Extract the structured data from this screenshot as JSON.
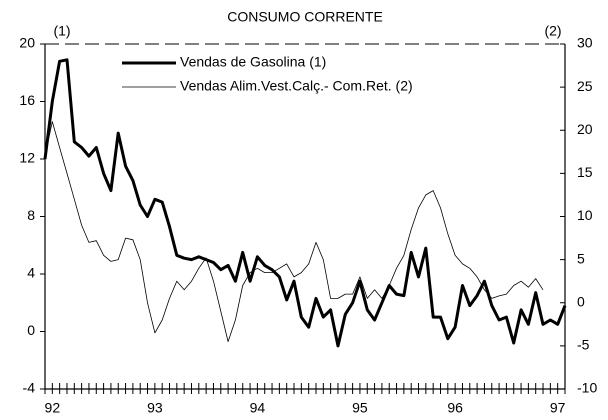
{
  "chart_data": {
    "type": "line",
    "title": "CONSUMO CORRENTE",
    "y_axis_label": "(1)",
    "y2_axis_label": "(2)",
    "categories": [
      null,
      "92",
      null,
      null,
      null,
      null,
      null,
      null,
      null,
      null,
      null,
      null,
      null,
      null,
      null,
      "93",
      null,
      null,
      null,
      null,
      null,
      null,
      null,
      null,
      null,
      null,
      null,
      null,
      null,
      "94",
      null,
      null,
      null,
      null,
      null,
      null,
      null,
      null,
      null,
      null,
      null,
      null,
      null,
      "95",
      null,
      null,
      null,
      null,
      null,
      null,
      null,
      null,
      null,
      null,
      null,
      null,
      "96",
      null,
      null,
      null,
      null,
      null,
      null,
      null,
      null,
      null,
      null,
      null,
      null,
      null,
      "97",
      null
    ],
    "series": [
      {
        "name": "Vendas de Gasolina (1)",
        "color": "#000000",
        "line_width": 3,
        "axis": "y",
        "values": [
          12,
          16,
          18.8,
          18.9,
          13.2,
          12.8,
          12.2,
          12.8,
          11,
          9.8,
          13.8,
          11.5,
          10.5,
          8.8,
          8,
          9.2,
          9,
          7.3,
          5.3,
          5.1,
          5,
          5.2,
          5,
          4.8,
          4.3,
          4.6,
          3.5,
          5.5,
          3.5,
          5.2,
          4.6,
          4.3,
          3.8,
          2.2,
          3.5,
          1,
          0.3,
          2.3,
          1,
          1.5,
          -1,
          1.2,
          2,
          3.5,
          1.5,
          0.8,
          2,
          3.2,
          2.6,
          2.5,
          5.5,
          3.8,
          5.8,
          1,
          1,
          -0.5,
          0.3,
          3.2,
          1.8,
          2.5,
          3.5,
          1.8,
          0.8,
          1,
          -0.8,
          1.5,
          0.5,
          2.7,
          0.5,
          0.8,
          0.5,
          1.8
        ]
      },
      {
        "name": "Vendas Alim.Vest.Calç.- Com.Ret.  (2)",
        "color": "#000000",
        "line_width": 0.8,
        "axis": "y2",
        "values": [
          17,
          21,
          18,
          15,
          12,
          9,
          7,
          7.2,
          5.5,
          4.8,
          5,
          7.5,
          7.3,
          5,
          0,
          -3.5,
          -2,
          0.5,
          2.5,
          1.5,
          2.5,
          4,
          5.2,
          2.5,
          -1,
          -4.5,
          -2,
          2,
          3.5,
          4,
          3.5,
          3.5,
          4,
          4.5,
          3,
          3.5,
          4.5,
          7,
          5,
          0.5,
          0.5,
          1,
          1,
          3,
          0.5,
          1.5,
          0.5,
          2,
          4,
          5.5,
          8.5,
          11,
          12.5,
          13,
          11,
          8,
          5.5,
          4.5,
          4,
          3,
          1.5,
          0.5,
          0.8,
          1,
          2,
          2.5,
          1.8,
          2.8,
          1.5,
          null,
          null,
          null
        ]
      }
    ],
    "ylim": [
      -4,
      20
    ],
    "yticks": [
      -4,
      0,
      4,
      8,
      12,
      16,
      20
    ],
    "y2lim": [
      -10,
      30
    ],
    "y2ticks": [
      -10,
      -5,
      0,
      5,
      10,
      15,
      20,
      25,
      30
    ],
    "grid": false
  }
}
